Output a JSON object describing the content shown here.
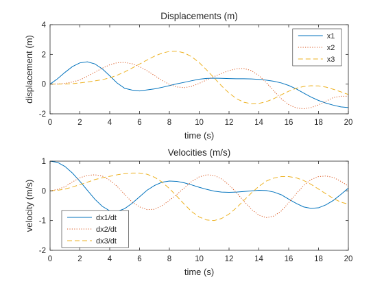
{
  "chart_data": [
    {
      "type": "line",
      "title": "Displacements (m)",
      "xlabel": "time (s)",
      "ylabel": "displacement (m)",
      "xlim": [
        0,
        20
      ],
      "ylim": [
        -2,
        4
      ],
      "xticks": [
        0,
        2,
        4,
        6,
        8,
        10,
        12,
        14,
        16,
        18,
        20
      ],
      "yticks": [
        -2,
        0,
        2,
        4
      ],
      "grid": false,
      "legend_position": "top-right",
      "series": [
        {
          "name": "x1",
          "color": "#0072BD",
          "style": "solid",
          "x": [
            0,
            0.5,
            1,
            1.5,
            2,
            2.5,
            3,
            3.5,
            4,
            4.5,
            5,
            5.5,
            6,
            6.5,
            7,
            7.5,
            8,
            8.5,
            9,
            9.5,
            10,
            10.5,
            11,
            11.5,
            12,
            12.5,
            13,
            13.5,
            14,
            14.5,
            15,
            15.5,
            16,
            16.5,
            17,
            17.5,
            18,
            18.5,
            19,
            19.5,
            20
          ],
          "y": [
            0,
            0.36,
            0.79,
            1.18,
            1.43,
            1.5,
            1.36,
            1.03,
            0.56,
            0.07,
            -0.28,
            -0.4,
            -0.46,
            -0.39,
            -0.32,
            -0.22,
            -0.1,
            0.02,
            0.12,
            0.23,
            0.33,
            0.38,
            0.4,
            0.39,
            0.37,
            0.36,
            0.36,
            0.35,
            0.32,
            0.27,
            0.19,
            0.08,
            -0.09,
            -0.32,
            -0.6,
            -0.87,
            -1.1,
            -1.28,
            -1.42,
            -1.53,
            -1.58
          ]
        },
        {
          "name": "x2",
          "color": "#D95319",
          "style": "dotted",
          "x": [
            0,
            0.5,
            1,
            1.5,
            2,
            2.5,
            3,
            3.5,
            4,
            4.5,
            5,
            5.5,
            6,
            6.5,
            7,
            7.5,
            8,
            8.5,
            9,
            9.5,
            10,
            10.5,
            11,
            11.5,
            12,
            12.5,
            13,
            13.5,
            14,
            14.5,
            15,
            15.5,
            16,
            16.5,
            17,
            17.5,
            18,
            18.5,
            19,
            19.5,
            20
          ],
          "y": [
            0,
            0.01,
            0.05,
            0.14,
            0.28,
            0.52,
            0.8,
            1.07,
            1.3,
            1.44,
            1.46,
            1.37,
            1.18,
            0.9,
            0.58,
            0.26,
            -0.02,
            -0.19,
            -0.24,
            -0.15,
            0.05,
            0.28,
            0.51,
            0.72,
            0.91,
            1.03,
            1.05,
            0.91,
            0.58,
            0.1,
            -0.45,
            -0.98,
            -1.38,
            -1.6,
            -1.66,
            -1.58,
            -1.4,
            -1.15,
            -0.9,
            -0.82,
            -0.82
          ]
        },
        {
          "name": "x3",
          "color": "#EDB120",
          "style": "dashed",
          "x": [
            0,
            0.5,
            1,
            1.5,
            2,
            2.5,
            3,
            3.5,
            4,
            4.5,
            5,
            5.5,
            6,
            6.5,
            7,
            7.5,
            8,
            8.5,
            9,
            9.5,
            10,
            10.5,
            11,
            11.5,
            12,
            12.5,
            13,
            13.5,
            14,
            14.5,
            15,
            15.5,
            16,
            16.5,
            17,
            17.5,
            18,
            18.5,
            19,
            19.5,
            20
          ],
          "y": [
            0,
            0,
            0.01,
            0.03,
            0.08,
            0.14,
            0.22,
            0.3,
            0.42,
            0.6,
            0.82,
            1.08,
            1.35,
            1.62,
            1.88,
            2.08,
            2.2,
            2.22,
            2.1,
            1.84,
            1.45,
            0.95,
            0.42,
            -0.12,
            -0.6,
            -0.98,
            -1.22,
            -1.32,
            -1.3,
            -1.18,
            -0.98,
            -0.72,
            -0.48,
            -0.28,
            -0.16,
            -0.11,
            -0.12,
            -0.2,
            -0.35,
            -0.52,
            -0.7
          ]
        }
      ]
    },
    {
      "type": "line",
      "title": "Velocities (m/s)",
      "xlabel": "time (s)",
      "ylabel": "velocity (m/s)",
      "xlim": [
        0,
        20
      ],
      "ylim": [
        -2,
        1
      ],
      "xticks": [
        0,
        2,
        4,
        6,
        8,
        10,
        12,
        14,
        16,
        18,
        20
      ],
      "yticks": [
        -2,
        -1,
        0,
        1
      ],
      "grid": false,
      "legend_position": "bottom-left",
      "series": [
        {
          "name": "dx1/dt",
          "color": "#0072BD",
          "style": "solid",
          "x": [
            0,
            0.5,
            1,
            1.5,
            2,
            2.5,
            3,
            3.5,
            4,
            4.5,
            5,
            5.5,
            6,
            6.5,
            7,
            7.5,
            8,
            8.5,
            9,
            9.5,
            10,
            10.5,
            11,
            11.5,
            12,
            12.5,
            13,
            13.5,
            14,
            14.5,
            15,
            15.5,
            16,
            16.5,
            17,
            17.5,
            18,
            18.5,
            19,
            19.5,
            20
          ],
          "y": [
            1,
            0.96,
            0.82,
            0.6,
            0.32,
            0.02,
            -0.28,
            -0.52,
            -0.67,
            -0.69,
            -0.6,
            -0.42,
            -0.2,
            0.02,
            0.18,
            0.29,
            0.33,
            0.32,
            0.27,
            0.2,
            0.12,
            0.05,
            -0.01,
            -0.04,
            -0.05,
            -0.04,
            -0.02,
            0,
            0.02,
            0.01,
            -0.04,
            -0.13,
            -0.28,
            -0.42,
            -0.54,
            -0.59,
            -0.57,
            -0.47,
            -0.32,
            -0.12,
            0.09
          ]
        },
        {
          "name": "dx2/dt",
          "color": "#D95319",
          "style": "dotted",
          "x": [
            0,
            0.5,
            1,
            1.5,
            2,
            2.5,
            3,
            3.5,
            4,
            4.5,
            5,
            5.5,
            6,
            6.5,
            7,
            7.5,
            8,
            8.5,
            9,
            9.5,
            10,
            10.5,
            11,
            11.5,
            12,
            12.5,
            13,
            13.5,
            14,
            14.5,
            15,
            15.5,
            16,
            16.5,
            17,
            17.5,
            18,
            18.5,
            19,
            19.5,
            20
          ],
          "y": [
            0,
            0.05,
            0.14,
            0.3,
            0.44,
            0.52,
            0.54,
            0.5,
            0.36,
            0.15,
            -0.12,
            -0.38,
            -0.54,
            -0.63,
            -0.62,
            -0.5,
            -0.32,
            -0.12,
            0.1,
            0.32,
            0.47,
            0.54,
            0.52,
            0.4,
            0.2,
            -0.06,
            -0.35,
            -0.62,
            -0.82,
            -0.9,
            -0.85,
            -0.68,
            -0.4,
            -0.1,
            0.18,
            0.38,
            0.48,
            0.5,
            0.45,
            0.32,
            0.16
          ]
        },
        {
          "name": "dx3/dt",
          "color": "#EDB120",
          "style": "dashed",
          "x": [
            0,
            0.5,
            1,
            1.5,
            2,
            2.5,
            3,
            3.5,
            4,
            4.5,
            5,
            5.5,
            6,
            6.5,
            7,
            7.5,
            8,
            8.5,
            9,
            9.5,
            10,
            10.5,
            11,
            11.5,
            12,
            12.5,
            13,
            13.5,
            14,
            14.5,
            15,
            15.5,
            16,
            16.5,
            17,
            17.5,
            18,
            18.5,
            19,
            19.5,
            20
          ],
          "y": [
            0,
            0.02,
            0.06,
            0.13,
            0.21,
            0.29,
            0.38,
            0.44,
            0.49,
            0.54,
            0.58,
            0.6,
            0.6,
            0.56,
            0.46,
            0.3,
            0.08,
            -0.18,
            -0.45,
            -0.7,
            -0.88,
            -0.98,
            -1,
            -0.93,
            -0.78,
            -0.57,
            -0.32,
            -0.07,
            0.15,
            0.33,
            0.43,
            0.48,
            0.48,
            0.44,
            0.35,
            0.22,
            0.06,
            -0.1,
            -0.26,
            -0.38,
            -0.45
          ]
        }
      ]
    }
  ]
}
